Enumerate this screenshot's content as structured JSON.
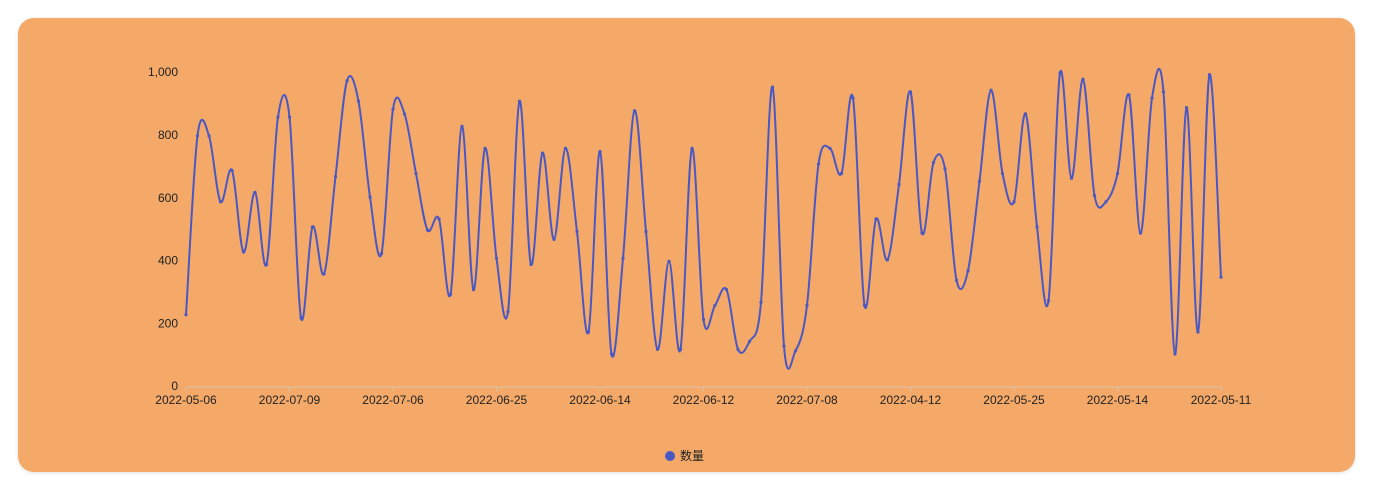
{
  "chart_data": {
    "type": "line",
    "categories": [
      "2022-05-06",
      null,
      null,
      null,
      null,
      null,
      null,
      null,
      null,
      "2022-07-09",
      null,
      null,
      null,
      null,
      null,
      null,
      null,
      null,
      "2022-07-06",
      null,
      null,
      null,
      null,
      null,
      null,
      null,
      null,
      "2022-06-25",
      null,
      null,
      null,
      null,
      null,
      null,
      null,
      null,
      "2022-06-14",
      null,
      null,
      null,
      null,
      null,
      null,
      null,
      null,
      "2022-06-12",
      null,
      null,
      null,
      null,
      null,
      null,
      null,
      null,
      "2022-07-08",
      null,
      null,
      null,
      null,
      null,
      null,
      null,
      null,
      "2022-04-12",
      null,
      null,
      null,
      null,
      null,
      null,
      null,
      null,
      "2022-05-25",
      null,
      null,
      null,
      null,
      null,
      null,
      null,
      null,
      "2022-05-14",
      null,
      null,
      null,
      null,
      null,
      null,
      null,
      null,
      "2022-05-11"
    ],
    "series": [
      {
        "name": "数量",
        "color": "#4a58c4",
        "values": [
          230,
          800,
          800,
          590,
          690,
          430,
          620,
          390,
          860,
          860,
          220,
          510,
          360,
          670,
          975,
          910,
          605,
          425,
          885,
          870,
          680,
          500,
          535,
          295,
          830,
          310,
          760,
          410,
          240,
          910,
          390,
          745,
          470,
          760,
          495,
          175,
          750,
          105,
          410,
          880,
          495,
          120,
          400,
          120,
          760,
          215,
          260,
          310,
          120,
          145,
          270,
          955,
          130,
          115,
          260,
          710,
          760,
          680,
          920,
          260,
          535,
          405,
          645,
          940,
          490,
          715,
          695,
          340,
          370,
          655,
          945,
          680,
          590,
          870,
          510,
          275,
          1000,
          665,
          980,
          610,
          590,
          680,
          930,
          490,
          920,
          940,
          105,
          890,
          175,
          995,
          350
        ]
      }
    ],
    "ylim": [
      0,
      1000
    ],
    "yticks": [
      0,
      200,
      400,
      600,
      800,
      {
        "value": 1000,
        "label": "1,000"
      }
    ],
    "legend": "bottom"
  }
}
